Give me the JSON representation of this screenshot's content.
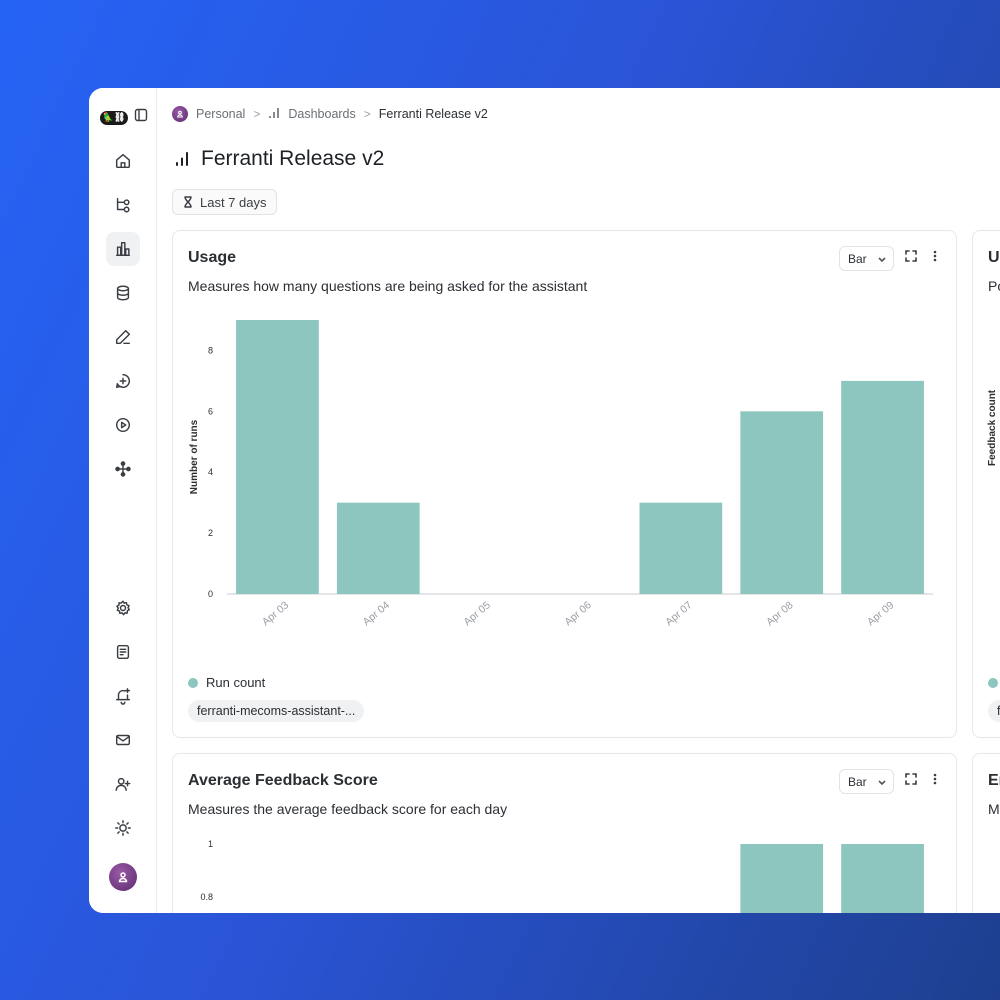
{
  "colors": {
    "bar": "#8dc5bf",
    "accent": "#2563f5"
  },
  "sidebar": {
    "logo_text": "🦜⛓",
    "items": [
      {
        "name": "home-icon",
        "active": false
      },
      {
        "name": "projects-icon",
        "active": false
      },
      {
        "name": "dashboards-icon",
        "active": true
      },
      {
        "name": "datasets-icon",
        "active": false
      },
      {
        "name": "annotation-icon",
        "active": false
      },
      {
        "name": "prompts-icon",
        "active": false
      },
      {
        "name": "deployments-icon",
        "active": false
      },
      {
        "name": "graph-icon",
        "active": false
      }
    ],
    "bottom_items": [
      {
        "name": "settings-icon"
      },
      {
        "name": "docs-icon"
      },
      {
        "name": "alerts-icon"
      },
      {
        "name": "mail-icon"
      },
      {
        "name": "add-user-icon"
      },
      {
        "name": "theme-icon"
      }
    ]
  },
  "breadcrumb": {
    "workspace": "Personal",
    "section": "Dashboards",
    "current": "Ferranti Release v2",
    "separator": ">"
  },
  "page": {
    "title": "Ferranti Release v2",
    "range_label": "Last 7 days"
  },
  "cards": {
    "usage": {
      "title": "Usage",
      "description": "Measures how many questions are being asked for the assistant",
      "chart_type_label": "Bar",
      "legend_label": "Run count",
      "filter_chip": "ferranti-mecoms-assistant-..."
    },
    "feedback": {
      "title": "Average Feedback Score",
      "description": "Measures the average feedback score for each day",
      "chart_type_label": "Bar"
    },
    "peek_top": {
      "title": "U",
      "description": "Po",
      "ylabel": "Feedback count",
      "chip": "fe"
    },
    "peek_bottom": {
      "title": "Er",
      "description": "M"
    }
  },
  "chart_data": [
    {
      "type": "bar",
      "title": "Usage",
      "categories": [
        "Apr 03",
        "Apr 04",
        "Apr 05",
        "Apr 06",
        "Apr 07",
        "Apr 08",
        "Apr 09"
      ],
      "series": [
        {
          "name": "Run count",
          "values": [
            9,
            3,
            0,
            0,
            3,
            6,
            7
          ]
        }
      ],
      "ylabel": "Number of runs",
      "xlabel": "",
      "ylim": [
        0,
        9
      ],
      "yticks": [
        0,
        2,
        4,
        6,
        8
      ],
      "grid": false,
      "legend": "bottom-left"
    },
    {
      "type": "bar",
      "title": "Average Feedback Score",
      "categories": [
        "Apr 03",
        "Apr 04",
        "Apr 05",
        "Apr 06",
        "Apr 07",
        "Apr 08",
        "Apr 09"
      ],
      "series": [
        {
          "values": [
            null,
            null,
            null,
            null,
            null,
            1,
            1
          ]
        }
      ],
      "ylabel": "",
      "xlabel": "",
      "ylim": [
        0,
        1
      ],
      "yticks": [
        0.8,
        1
      ],
      "grid": false
    }
  ]
}
